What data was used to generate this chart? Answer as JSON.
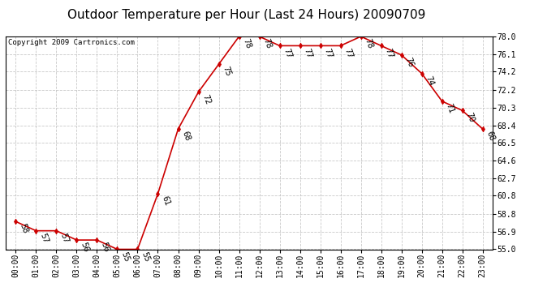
{
  "title": "Outdoor Temperature per Hour (Last 24 Hours) 20090709",
  "copyright": "Copyright 2009 Cartronics.com",
  "hours": [
    "00:00",
    "01:00",
    "02:00",
    "03:00",
    "04:00",
    "05:00",
    "06:00",
    "07:00",
    "08:00",
    "09:00",
    "10:00",
    "11:00",
    "12:00",
    "13:00",
    "14:00",
    "15:00",
    "16:00",
    "17:00",
    "18:00",
    "19:00",
    "20:00",
    "21:00",
    "22:00",
    "23:00"
  ],
  "temps": [
    58,
    57,
    57,
    56,
    56,
    55,
    55,
    61,
    68,
    72,
    75,
    78,
    78,
    77,
    77,
    77,
    77,
    78,
    77,
    76,
    74,
    71,
    70,
    68
  ],
  "ylim": [
    55.0,
    78.0
  ],
  "yticks": [
    55.0,
    56.9,
    58.8,
    60.8,
    62.7,
    64.6,
    66.5,
    68.4,
    70.3,
    72.2,
    74.2,
    76.1,
    78.0
  ],
  "ytick_labels": [
    "55.0",
    "56.9",
    "58.8",
    "60.8",
    "62.7",
    "64.6",
    "66.5",
    "68.4",
    "70.3",
    "72.2",
    "74.2",
    "76.1",
    "78.0"
  ],
  "line_color": "#cc0000",
  "marker_color": "#cc0000",
  "bg_color": "#ffffff",
  "grid_color": "#bbbbbb",
  "title_fontsize": 11,
  "label_fontsize": 7,
  "copyright_fontsize": 6.5,
  "annotation_rotation": -70,
  "annotation_fontsize": 7
}
